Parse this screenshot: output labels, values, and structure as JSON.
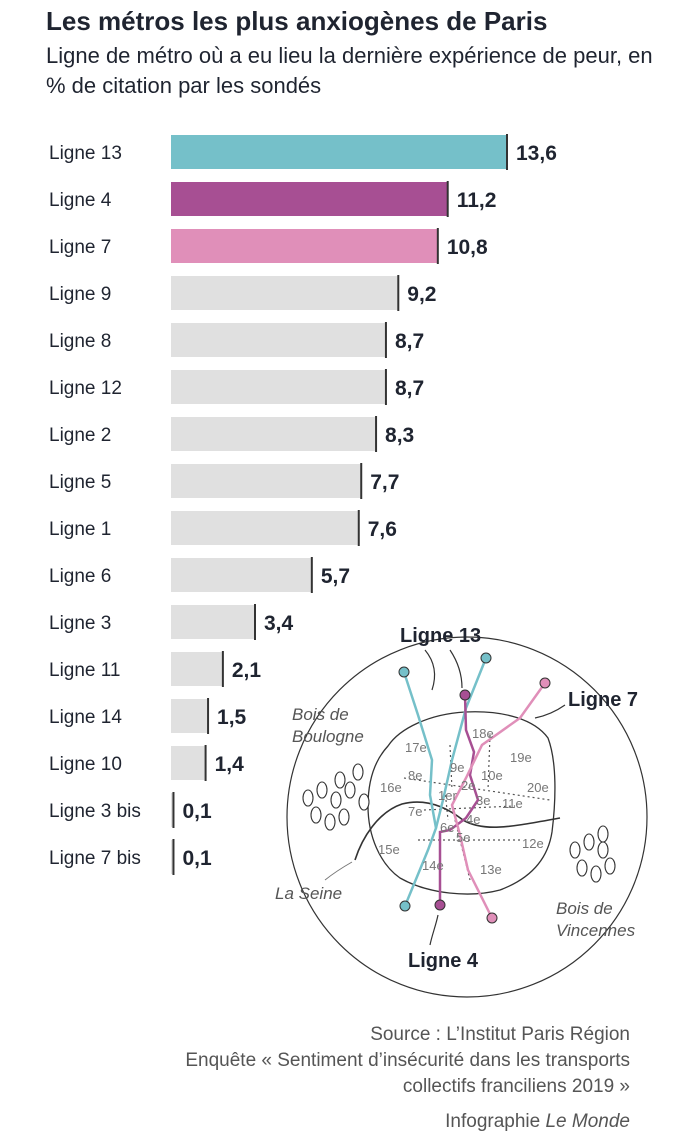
{
  "header": {
    "title": "Les métros les plus anxiogènes de Paris",
    "subtitle": "Ligne de métro où a eu lieu la dernière expérience de peur, en % de citation par les sondés"
  },
  "colors": {
    "ligne13": "#75c0c9",
    "ligne4": "#a74f93",
    "ligne7": "#e08fb9",
    "default": "#e0e0e0",
    "text": "#1f2430"
  },
  "chart_data": {
    "type": "bar",
    "orientation": "horizontal",
    "title": "Les métros les plus anxiogènes de Paris",
    "subtitle": "Ligne de métro où a eu lieu la dernière expérience de peur, en % de citation par les sondés",
    "categories": [
      "Ligne 13",
      "Ligne 4",
      "Ligne 7",
      "Ligne 9",
      "Ligne 8",
      "Ligne 12",
      "Ligne 2",
      "Ligne 5",
      "Ligne 1",
      "Ligne 6",
      "Ligne 3",
      "Ligne 11",
      "Ligne 14",
      "Ligne 10",
      "Ligne 3 bis",
      "Ligne 7 bis"
    ],
    "values": [
      13.6,
      11.2,
      10.8,
      9.2,
      8.7,
      8.7,
      8.3,
      7.7,
      7.6,
      5.7,
      3.4,
      2.1,
      1.5,
      1.4,
      0.1,
      0.1
    ],
    "value_labels": [
      "13,6",
      "11,2",
      "10,8",
      "9,2",
      "8,7",
      "8,7",
      "8,3",
      "7,7",
      "7,6",
      "5,7",
      "3,4",
      "2,1",
      "1,5",
      "1,4",
      "0,1",
      "0,1"
    ],
    "highlight": {
      "Ligne 13": "#75c0c9",
      "Ligne 4": "#a74f93",
      "Ligne 7": "#e08fb9"
    },
    "xlim": [
      0,
      13.6
    ],
    "grid": false,
    "legend": "none"
  },
  "map": {
    "line_labels": {
      "l13": "Ligne 13",
      "l7": "Ligne 7",
      "l4": "Ligne 4"
    },
    "places": {
      "bois_boulogne_1": "Bois de",
      "bois_boulogne_2": "Boulogne",
      "seine": "La Seine",
      "bois_vincennes_1": "Bois de",
      "bois_vincennes_2": "Vincennes"
    },
    "arrondissements": {
      "a1": "1er",
      "a2": "2e",
      "a3": "3e",
      "a4": "4e",
      "a5": "5e",
      "a6": "6e",
      "a7": "7e",
      "a8": "8e",
      "a9": "9e",
      "a10": "10e",
      "a11": "11e",
      "a12": "12e",
      "a13": "13e",
      "a14": "14e",
      "a15": "15e",
      "a16": "16e",
      "a17": "17e",
      "a18": "18e",
      "a19": "19e",
      "a20": "20e"
    }
  },
  "footer": {
    "source": "Source : L’Institut Paris Région",
    "survey_1": "Enquête « Sentiment d’insécurité dans les transports",
    "survey_2": "collectifs franciliens 2019 »",
    "credit_prefix": "Infographie ",
    "credit_brand": "Le Monde"
  }
}
